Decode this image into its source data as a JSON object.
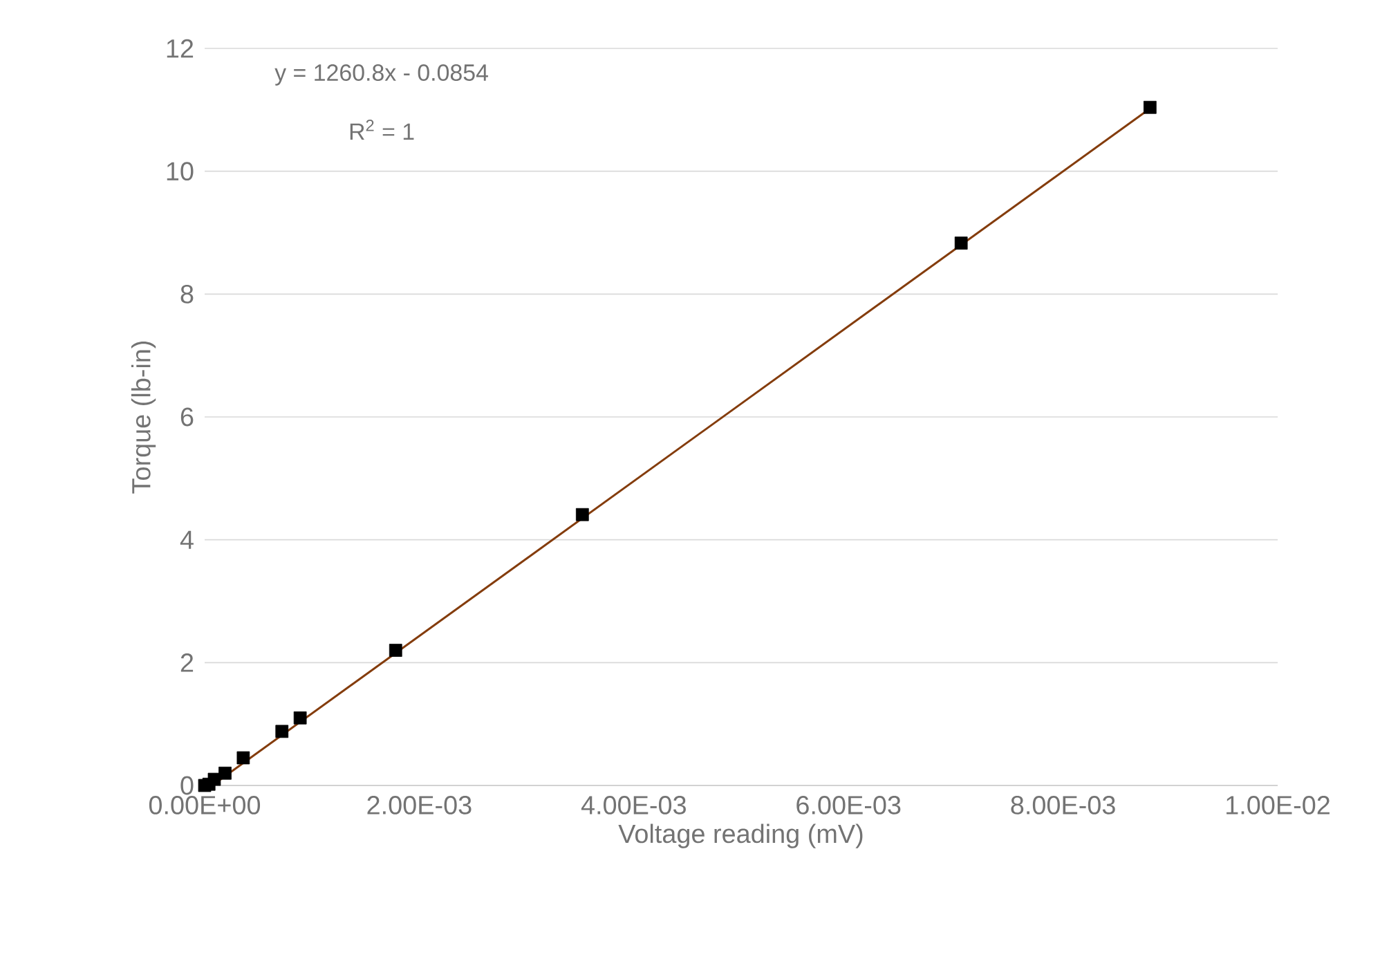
{
  "chart_data": {
    "type": "scatter",
    "xlabel": "Voltage reading (mV)",
    "ylabel": "Torque (lb-in)",
    "xlim": [
      0,
      0.01
    ],
    "ylim": [
      0,
      12
    ],
    "xticks": [
      {
        "value": 0,
        "label": "0.00E+00"
      },
      {
        "value": 0.002,
        "label": "2.00E-03"
      },
      {
        "value": 0.004,
        "label": "4.00E-03"
      },
      {
        "value": 0.006,
        "label": "6.00E-03"
      },
      {
        "value": 0.008,
        "label": "8.00E-03"
      },
      {
        "value": 0.01,
        "label": "1.00E-02"
      }
    ],
    "yticks": [
      0,
      2,
      4,
      6,
      8,
      10,
      12
    ],
    "grid": "y",
    "marker": "square",
    "series": [
      {
        "color": "#000000",
        "x": [
          0,
          4e-05,
          9e-05,
          0.00019,
          0.00036,
          0.00072,
          0.00089,
          0.00178,
          0.00352,
          0.00705,
          0.00881
        ],
        "values": [
          0,
          0.02,
          0.1,
          0.2,
          0.45,
          0.88,
          1.1,
          2.2,
          4.41,
          8.83,
          11.04
        ]
      },
      {
        "type": "line",
        "color": "#843c0c",
        "marker": "none",
        "x": [
          7e-05,
          0.00881
        ],
        "values": [
          0,
          11.02
        ]
      }
    ],
    "annotations": [
      "y = 1260.8x - 0.0854",
      "R$^{2}$ = 1"
    ]
  }
}
